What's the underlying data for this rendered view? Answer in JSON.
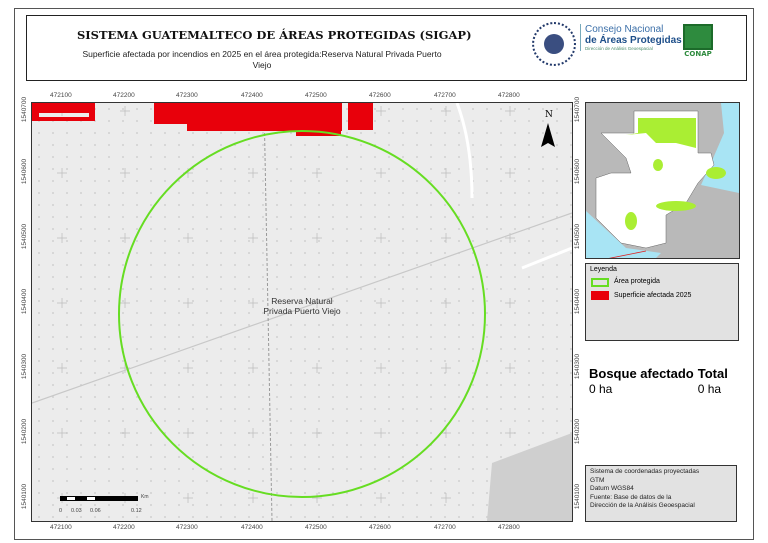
{
  "header": {
    "title": "SISTEMA GUATEMALTECO DE ÁREAS PROTEGIDAS  (SIGAP)",
    "subtitle": "Superficie afectada por incendios en 2025 en el área protegida:Reserva Natural Privada Puerto Viejo",
    "seal_text": "GOBIERNO DE LA REPÚBLICA DE GUATEMALA",
    "org_line1": "Consejo Nacional",
    "org_line2": "de Áreas Protegidas",
    "org_line3": "Dirección de Análisis Geoespacial",
    "logo_text": "CONAP"
  },
  "map": {
    "x_ticks": [
      "472100",
      "472200",
      "472300",
      "472400",
      "472500",
      "472600",
      "472700",
      "472800"
    ],
    "y_ticks": [
      "1540700",
      "1540600",
      "1540500",
      "1540400",
      "1540300",
      "1540200",
      "1540100"
    ],
    "area_label": "Reserva Natural Privada Puerto Viejo",
    "north_label": "N",
    "scale_labels": [
      "0",
      "0.03",
      "0.06",
      "0.12"
    ],
    "scale_unit": "Km",
    "colors": {
      "protected_area": "#66dd22",
      "burned": "#e8000b",
      "background": "#ececec"
    }
  },
  "legend": {
    "title": "Leyenda",
    "items": [
      {
        "label": "Área protegida",
        "color": "#66dd22",
        "style": "outline"
      },
      {
        "label": "Superficie afectada 2025",
        "color": "#e8000b",
        "style": "fill"
      }
    ]
  },
  "stats": {
    "col1_header": "Bosque afectado",
    "col2_header": "Total",
    "col1_value": "0 ha",
    "col2_value": "0 ha"
  },
  "info": {
    "lines": [
      "Sistema de coordenadas proyectadas",
      "GTM",
      "Datum WGS84",
      "Fuente: Base de datos de la",
      "Dirección de la Análisis Geoespacial"
    ]
  }
}
